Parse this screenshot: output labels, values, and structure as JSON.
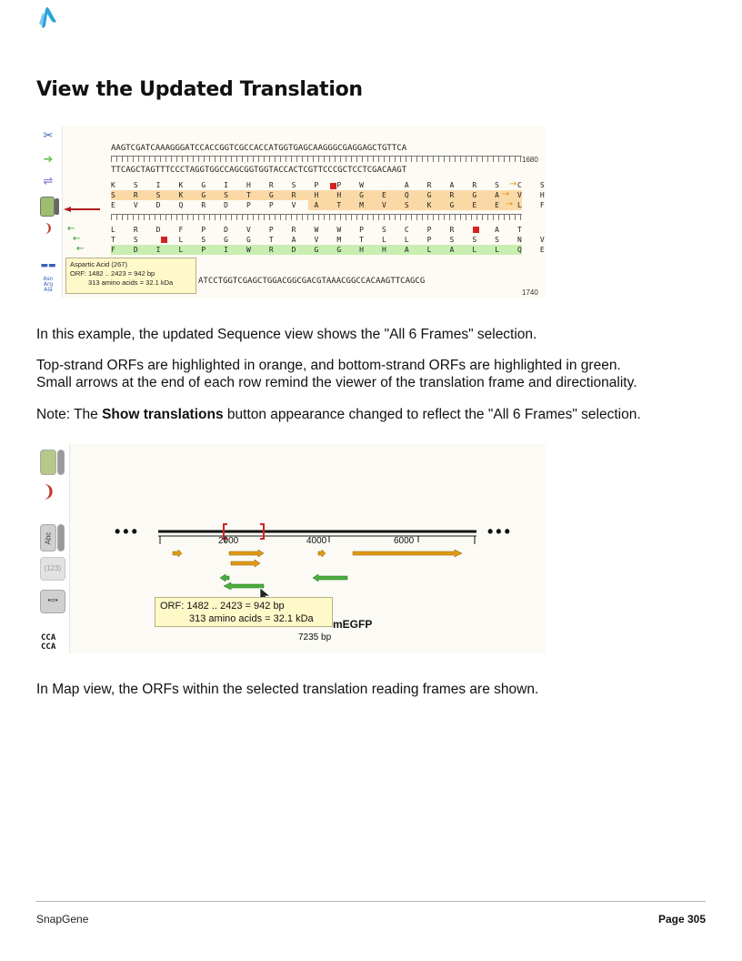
{
  "page": {
    "title": "View the Updated Translation",
    "para1": "In this example, the updated Sequence view shows the \"All 6 Frames\" selection.",
    "para2_line1": "Top-strand ORFs are highlighted in orange, and bottom-strand ORFs are highlighted in green.",
    "para2_line2": "Small arrows at the end of each row remind the viewer of the translation frame and directionality.",
    "para3_prefix": "Note: The ",
    "para3_bold": "Show translations",
    "para3_suffix": " button appearance changed to reflect the \"All 6 Frames\" selection.",
    "para4": "In Map view, the ORFs within the selected translation reading frames are shown."
  },
  "sequence_view": {
    "top_strand": "AAGTCGATCAAAGGGATCCACCGGTCGCCACCATGGTGAGCAAGGGCGAGGAGCTGTTCA",
    "bottom_strand": "TTCAGCTAGTTTCCCTAGGTGGCCAGCGGTGGTACCACTCGTTCCCGCTCCTCGACAAGT",
    "frame1": "K S I K G I H R S P P W   A R A R S C S",
    "frame2": "S R S K G S T G R H H G E Q G R G A V H",
    "frame3": "E V D Q R D P P V A T M V S K G E E L F",
    "frame4": "L R D F P D V P R W W P S C P R P A T",
    "frame5": "T S   L S G G T A V M T L L P S S S N V",
    "frame6": "F D I L P I W R D G G H H A L A L L Q E",
    "bottom_seq": "ATCCTGGTCGAGCTGGACGGCGACGTAAACGGCCACAAGTTCAGCG",
    "pos_top": "1680",
    "pos_bottom": "1740",
    "tooltip_title": "Aspartic Acid (267)",
    "tooltip_line1": "ORF:  1482 .. 2423  =  942 bp",
    "tooltip_line2": "313 amino acids  =  32.1 kDa",
    "toolbar_text": [
      "Asn",
      "Arg",
      "Ala"
    ]
  },
  "map_view": {
    "ellipsis": "• • •",
    "tick_2000": "2000",
    "tick_4000": "4000",
    "tick_6000": "6000",
    "abc_label": "Abc",
    "num_label": "(123)",
    "cca_label": "CCA",
    "cca_label2": "CCA",
    "tooltip_line1": "ORF:  1482 .. 2423  =  942 bp",
    "tooltip_line2": "313 amino acids  =  32.1 kDa",
    "plasmid_name_visible": "mEGFP",
    "plasmid_size": "7235 bp"
  },
  "footer": {
    "left": "SnapGene",
    "right": "Page 305"
  },
  "colors": {
    "orf_top": "#fbd9a6",
    "orf_bottom": "#c9eeb2",
    "orange_arrow": "#e29a15",
    "green_arrow": "#2a9a2a",
    "stop": "#d42323",
    "tooltip_bg": "#fff9c9"
  }
}
